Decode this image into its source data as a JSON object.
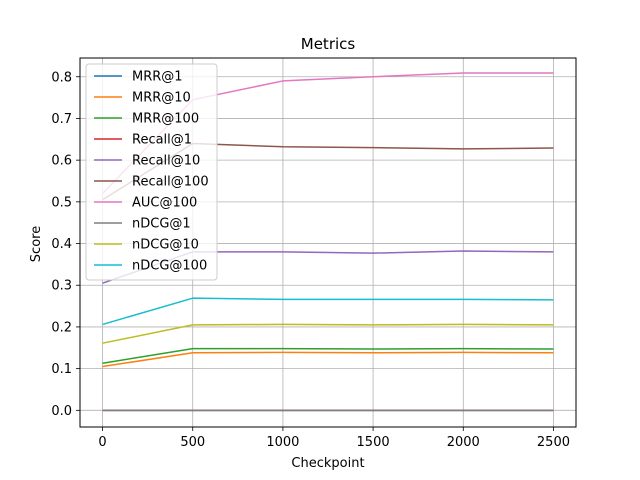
{
  "chart_data": {
    "type": "line",
    "title": "Metrics",
    "xlabel": "Checkpoint",
    "ylabel": "Score",
    "x": [
      0,
      500,
      1000,
      1500,
      2000,
      2500
    ],
    "xlim": [
      -125,
      2625
    ],
    "ylim": [
      -0.04,
      0.845
    ],
    "xticks": [
      "0",
      "500",
      "1000",
      "1500",
      "2000",
      "2500"
    ],
    "yticks": [
      "0.0",
      "0.1",
      "0.2",
      "0.3",
      "0.4",
      "0.5",
      "0.6",
      "0.7",
      "0.8"
    ],
    "grid": true,
    "legend_position": "top-left",
    "series": [
      {
        "name": "MRR@1",
        "color": "#1f77b4",
        "values": [
          0.0,
          0.0,
          0.0,
          0.0,
          0.0,
          0.0
        ]
      },
      {
        "name": "MRR@10",
        "color": "#ff7f0e",
        "values": [
          0.105,
          0.138,
          0.139,
          0.138,
          0.139,
          0.138
        ]
      },
      {
        "name": "MRR@100",
        "color": "#2ca02c",
        "values": [
          0.113,
          0.148,
          0.148,
          0.147,
          0.148,
          0.147
        ]
      },
      {
        "name": "Recall@1",
        "color": "#d62728",
        "values": [
          0.0,
          0.0,
          0.0,
          0.0,
          0.0,
          0.0
        ]
      },
      {
        "name": "Recall@10",
        "color": "#9467bd",
        "values": [
          0.305,
          0.38,
          0.38,
          0.377,
          0.382,
          0.38
        ]
      },
      {
        "name": "Recall@100",
        "color": "#8c564b",
        "values": [
          0.505,
          0.64,
          0.632,
          0.63,
          0.627,
          0.629
        ]
      },
      {
        "name": "AUC@100",
        "color": "#e377c2",
        "values": [
          0.52,
          0.745,
          0.79,
          0.8,
          0.809,
          0.809
        ]
      },
      {
        "name": "nDCG@1",
        "color": "#7f7f7f",
        "values": [
          0.0,
          0.0,
          0.0,
          0.0,
          0.0,
          0.0
        ]
      },
      {
        "name": "nDCG@10",
        "color": "#bcbd22",
        "values": [
          0.161,
          0.205,
          0.206,
          0.205,
          0.206,
          0.205
        ]
      },
      {
        "name": "nDCG@100",
        "color": "#17becf",
        "values": [
          0.206,
          0.269,
          0.266,
          0.266,
          0.266,
          0.265
        ]
      }
    ]
  }
}
